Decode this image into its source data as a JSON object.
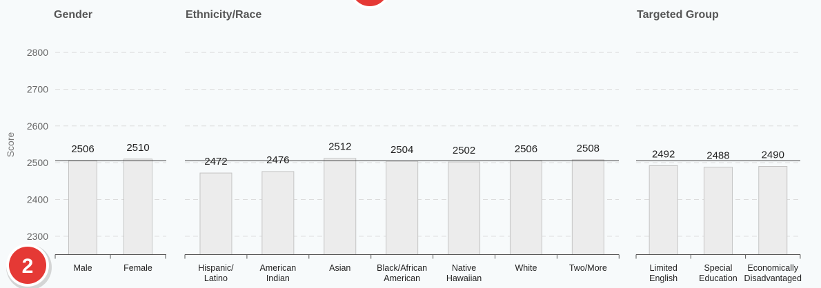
{
  "chart_data": {
    "type": "bar",
    "ylabel": "Score",
    "ylim": [
      2250,
      2810
    ],
    "yticks": [
      2300,
      2400,
      2500,
      2600,
      2700,
      2800
    ],
    "reference_value": 2505,
    "grid": true,
    "groups": [
      {
        "title": "Gender",
        "categories": [
          [
            "Male"
          ],
          [
            "Female"
          ]
        ],
        "values": [
          2506,
          2510
        ]
      },
      {
        "title": "Ethnicity/Race",
        "categories": [
          [
            "Hispanic/",
            "Latino"
          ],
          [
            "American",
            "Indian"
          ],
          [
            "Asian"
          ],
          [
            "Black/African",
            "American"
          ],
          [
            "Native",
            "Hawaiian"
          ],
          [
            "White"
          ],
          [
            "Two/More"
          ]
        ],
        "values": [
          2472,
          2476,
          2512,
          2504,
          2502,
          2506,
          2508
        ]
      },
      {
        "title": "Targeted Group",
        "categories": [
          [
            "Limited",
            "English"
          ],
          [
            "Special",
            "Education"
          ],
          [
            "Economically",
            "Disadvantaged"
          ]
        ],
        "values": [
          2492,
          2488,
          2490
        ]
      }
    ]
  },
  "badges": [
    {
      "label": "2",
      "color": "#e53935"
    },
    {
      "label": "",
      "color": "#e53935"
    }
  ],
  "colors": {
    "bar_fill": "#ececec",
    "bar_stroke": "#c4c4c4",
    "grid": "#dcdcdc",
    "reference_line": "#333333"
  }
}
